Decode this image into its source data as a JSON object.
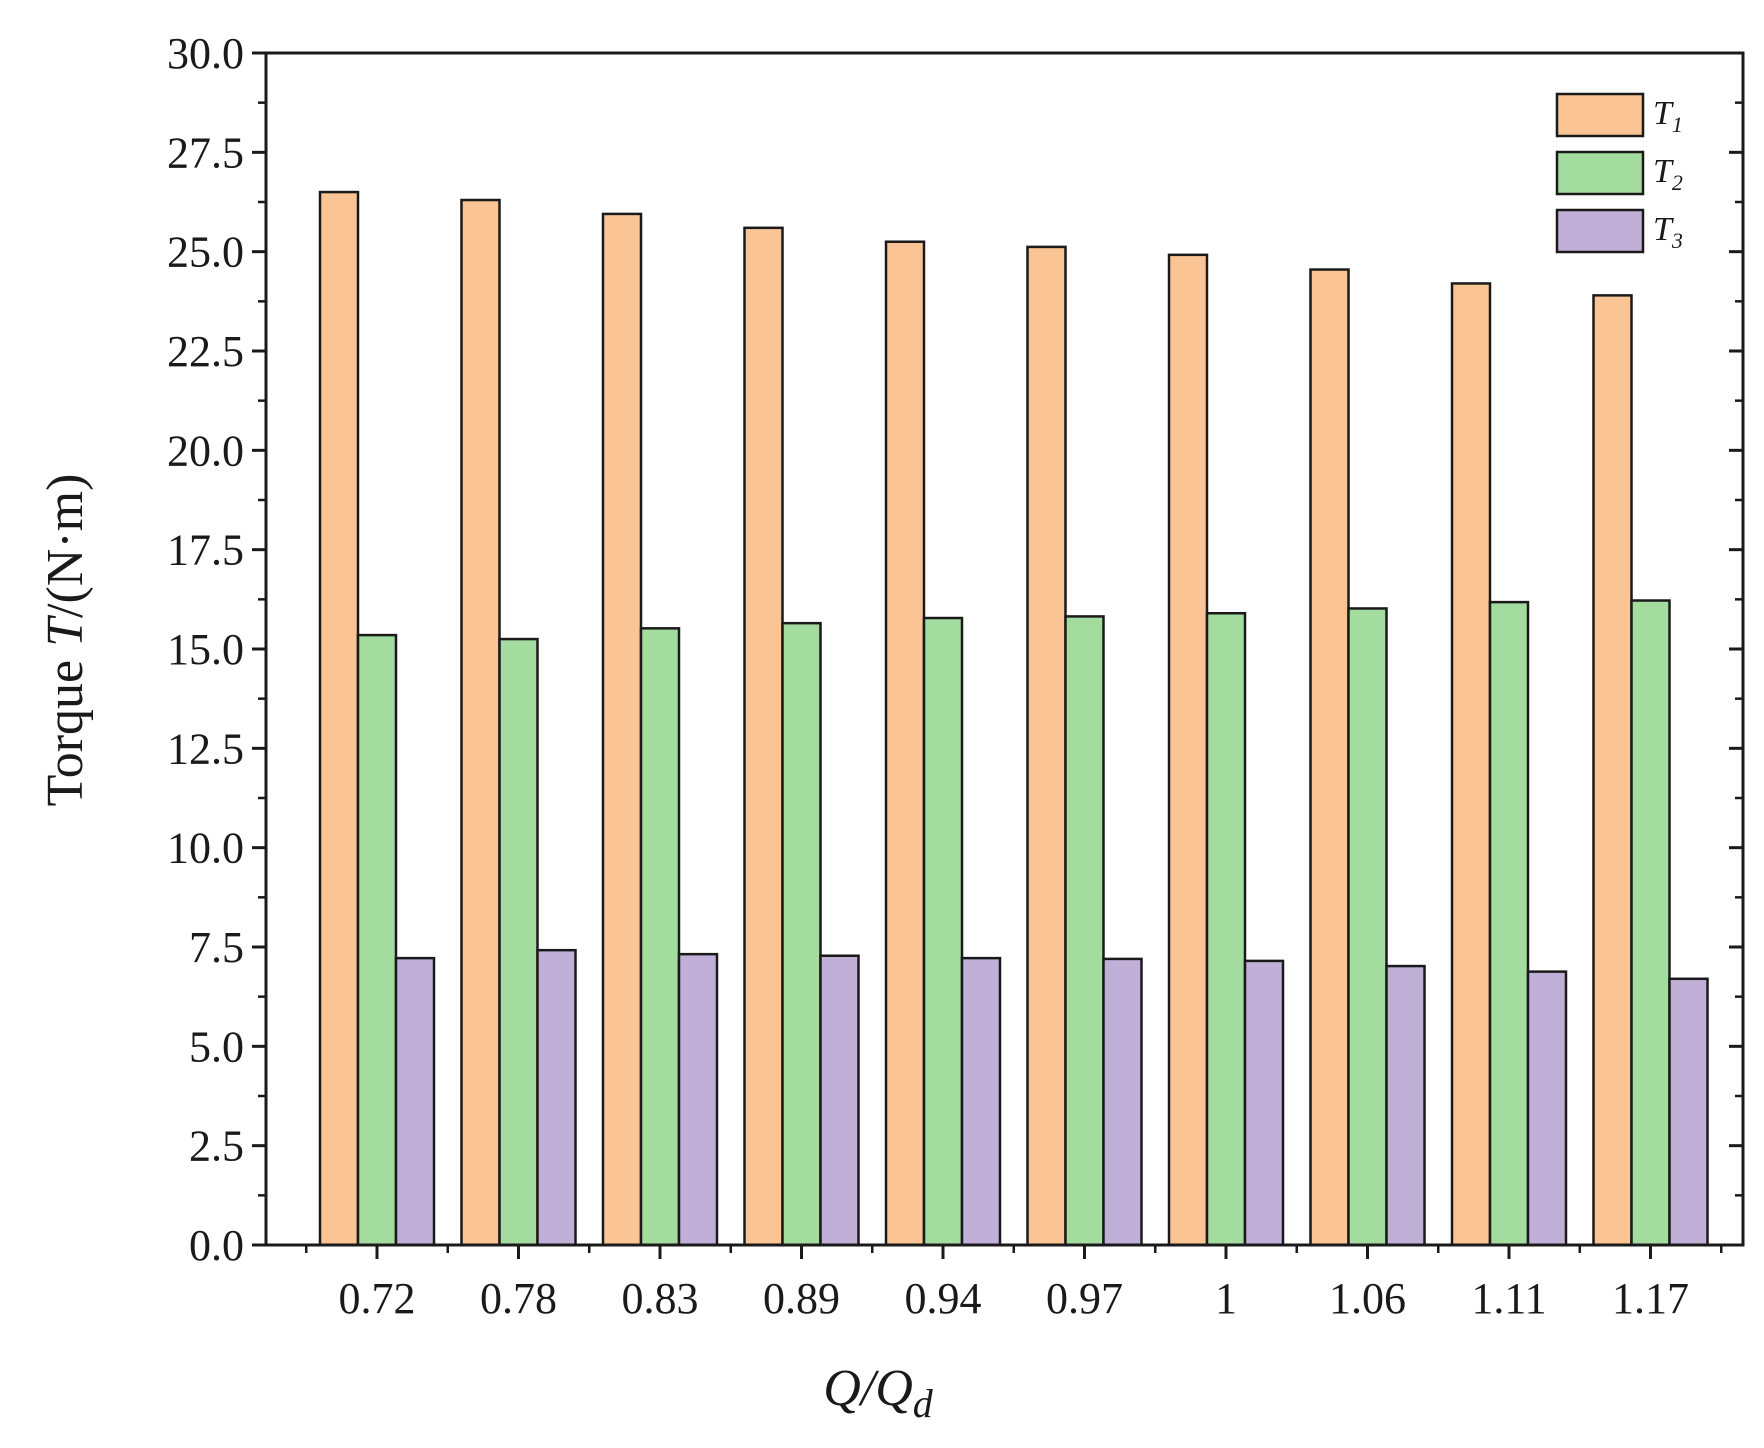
{
  "chart_data": {
    "type": "bar",
    "title": "",
    "xlabel": "Q/Qd",
    "xlabel_parts": {
      "main": "Q/Q",
      "sub": "d"
    },
    "ylabel": "Torque T/(N·m)",
    "ylabel_parts": {
      "prefix": "Torque ",
      "var": "T",
      "suffix": "/(N·m)"
    },
    "categories": [
      "0.72",
      "0.78",
      "0.83",
      "0.89",
      "0.94",
      "0.97",
      "1",
      "1.06",
      "1.11",
      "1.17"
    ],
    "ylim": [
      0,
      30
    ],
    "yticks": [
      "0.0",
      "2.5",
      "5.0",
      "7.5",
      "10.0",
      "12.5",
      "15.0",
      "17.5",
      "20.0",
      "22.5",
      "25.0",
      "27.5",
      "30.0"
    ],
    "grid": false,
    "legend_position": "top-right",
    "series": [
      {
        "name": "T1",
        "label_main": "T",
        "label_sub": "1",
        "color": "#FBC495",
        "values": [
          26.5,
          26.3,
          25.95,
          25.6,
          25.25,
          25.12,
          24.92,
          24.55,
          24.2,
          23.9
        ]
      },
      {
        "name": "T2",
        "label_main": "T",
        "label_sub": "2",
        "color": "#A4DCA0",
        "values": [
          15.35,
          15.25,
          15.52,
          15.65,
          15.78,
          15.82,
          15.9,
          16.02,
          16.18,
          16.22
        ]
      },
      {
        "name": "T3",
        "label_main": "T",
        "label_sub": "3",
        "color": "#C0B0D8",
        "values": [
          7.22,
          7.42,
          7.32,
          7.28,
          7.22,
          7.2,
          7.15,
          7.02,
          6.88,
          6.7
        ]
      }
    ]
  }
}
